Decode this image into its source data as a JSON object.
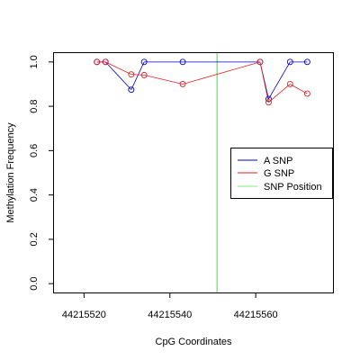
{
  "chart_data": {
    "type": "line",
    "xlabel": "CpG Coordinates",
    "ylabel": "Methylation Frequency",
    "xlim": [
      44215513,
      44215578
    ],
    "ylim": [
      -0.04,
      1.04
    ],
    "x_ticks": [
      44215520,
      44215540,
      44215560
    ],
    "x_tick_labels": [
      "44215520",
      "44215540",
      "44215560"
    ],
    "y_ticks": [
      0.0,
      0.2,
      0.4,
      0.6,
      0.8,
      1.0
    ],
    "y_tick_labels": [
      "0.0",
      "0.2",
      "0.4",
      "0.6",
      "0.8",
      "1.0"
    ],
    "grid": false,
    "legend_position": "right",
    "series": [
      {
        "name": "A SNP",
        "color": "#0000cc",
        "x": [
          44215523,
          44215525,
          44215531,
          44215534,
          44215543,
          44215561,
          44215563,
          44215568,
          44215572
        ],
        "y": [
          1.0,
          1.0,
          0.875,
          1.0,
          1.0,
          1.0,
          0.833,
          1.0,
          1.0
        ]
      },
      {
        "name": "G SNP",
        "color": "#dd2222",
        "x": [
          44215523,
          44215525,
          44215531,
          44215534,
          44215543,
          44215561,
          44215563,
          44215568,
          44215572
        ],
        "y": [
          1.0,
          1.0,
          0.944,
          0.941,
          0.9,
          1.0,
          0.818,
          0.9,
          0.857
        ]
      }
    ],
    "vline": {
      "name": "SNP Position",
      "color": "#77ee77",
      "x": 44215551
    }
  }
}
